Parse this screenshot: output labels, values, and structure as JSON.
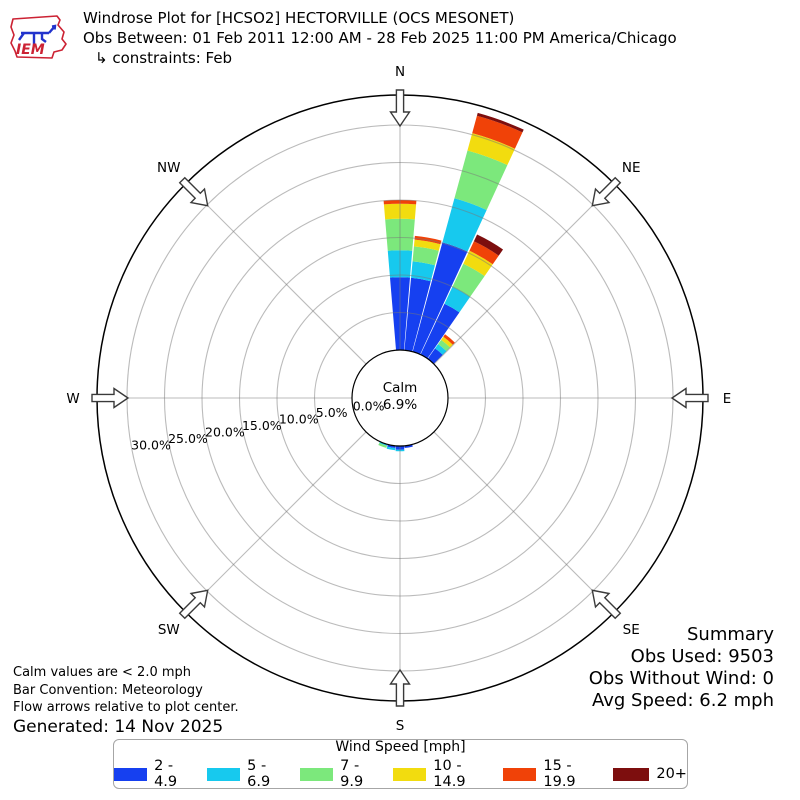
{
  "header": {
    "title": "Windrose Plot for [HCSO2] HECTORVILLE (OCS MESONET)",
    "obs_between": "Obs Between: 01 Feb 2011 12:00 AM - 28 Feb 2025 11:00 PM America/Chicago",
    "constraints": "↳ constraints: Feb"
  },
  "logo": {
    "text": "IEM"
  },
  "calm": {
    "label": "Calm",
    "value": "6.9%"
  },
  "notes": {
    "0": "Calm values are < 2.0 mph",
    "1": "Bar Convention: Meteorology",
    "2": "Flow arrows relative to plot center.",
    "generated": "Generated: 14 Nov 2025"
  },
  "summary": {
    "title": "Summary",
    "obs_used": "Obs Used: 9503",
    "obs_without_wind": "Obs Without Wind: 0",
    "avg_speed": "Avg Speed: 6.2 mph"
  },
  "legend": {
    "title": "Wind Speed [mph]",
    "bins": [
      {
        "label": "2 - 4.9",
        "color": "#1640f0"
      },
      {
        "label": "5 - 6.9",
        "color": "#17c9ee"
      },
      {
        "label": "7 - 9.9",
        "color": "#7ce87c"
      },
      {
        "label": "10 - 14.9",
        "color": "#f2dc0f"
      },
      {
        "label": "15 - 19.9",
        "color": "#f04208"
      },
      {
        "label": "20+",
        "color": "#7d0e0e"
      }
    ]
  },
  "chart_data": {
    "type": "windrose",
    "title": "Windrose Plot for [HCSO2] HECTORVILLE (OCS MESONET)",
    "units": "percent frequency",
    "bar_convention": "Meteorology",
    "calm_percent": 6.9,
    "direction_step_deg": 10,
    "petal_width_deg": 9.5,
    "axis_max_pct": 34,
    "rings_pct": [
      0,
      5,
      10,
      15,
      20,
      25,
      30
    ],
    "ring_labels": [
      "0.0%",
      "5.0%",
      "10.0%",
      "15.0%",
      "20.0%",
      "25.0%",
      "30.0%"
    ],
    "ring_label_azimuth_deg": 260,
    "compass": [
      {
        "label": "N",
        "angle": 0
      },
      {
        "label": "NE",
        "angle": 45
      },
      {
        "label": "E",
        "angle": 90
      },
      {
        "label": "SE",
        "angle": 135
      },
      {
        "label": "S",
        "angle": 180
      },
      {
        "label": "SW",
        "angle": 225
      },
      {
        "label": "W",
        "angle": 270
      },
      {
        "label": "NW",
        "angle": 315
      }
    ],
    "speed_bin_labels": [
      "2 - 4.9",
      "5 - 6.9",
      "7 - 9.9",
      "10 - 14.9",
      "15 - 19.9",
      "20+"
    ],
    "petals": [
      {
        "angle": 0,
        "values": [
          9.7,
          3.6,
          4.2,
          2.0,
          0.5,
          0
        ]
      },
      {
        "angle": 10,
        "values": [
          9.7,
          2.2,
          2.0,
          0.9,
          0.5,
          0
        ]
      },
      {
        "angle": 20,
        "values": [
          15.1,
          6.1,
          6.6,
          2.4,
          2.4,
          0.4
        ]
      },
      {
        "angle": 30,
        "values": [
          7.5,
          2.5,
          3.4,
          1.9,
          1.4,
          1.0
        ]
      },
      {
        "angle": 40,
        "values": [
          1.7,
          0.7,
          0.7,
          0.5,
          0.4,
          0
        ]
      },
      {
        "angle": 170,
        "values": [
          0.3,
          0,
          0,
          0,
          0,
          0
        ]
      },
      {
        "angle": 180,
        "values": [
          0.5,
          0.2,
          0,
          0,
          0,
          0
        ]
      },
      {
        "angle": 190,
        "values": [
          0.3,
          0.3,
          0,
          0,
          0,
          0
        ]
      },
      {
        "angle": 200,
        "values": [
          0,
          0.2,
          0.3,
          0,
          0,
          0
        ]
      }
    ]
  }
}
